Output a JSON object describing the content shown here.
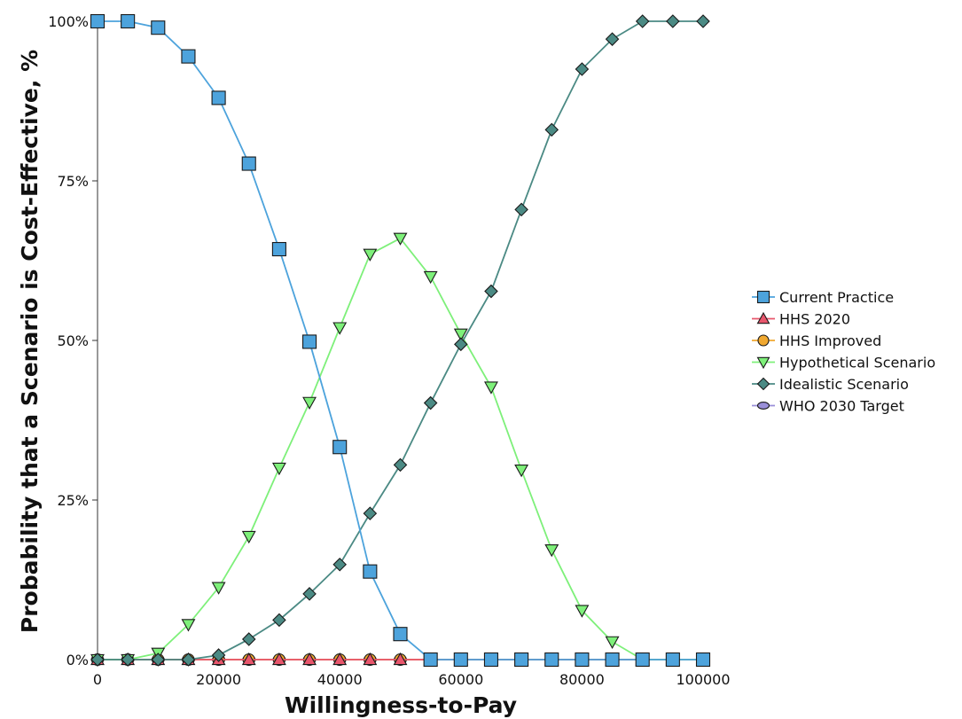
{
  "chart_data": {
    "type": "line",
    "xlabel": "Willingness-to-Pay",
    "ylabel": "Probability that a Scenario is Cost-Effective, %",
    "xlim": [
      0,
      100000
    ],
    "ylim": [
      0,
      100
    ],
    "x_ticks": [
      0,
      20000,
      40000,
      60000,
      80000,
      100000
    ],
    "x_tick_labels": [
      "0",
      "20000",
      "40000",
      "60000",
      "80000",
      "100000"
    ],
    "y_ticks": [
      0,
      25,
      50,
      75,
      100
    ],
    "y_tick_labels": [
      "0%",
      "25%",
      "50%",
      "75%",
      "100%"
    ],
    "grid": false,
    "legend_position": "right",
    "x": [
      0,
      5000,
      10000,
      15000,
      20000,
      25000,
      30000,
      35000,
      40000,
      45000,
      50000,
      55000,
      60000,
      65000,
      70000,
      75000,
      80000,
      85000,
      90000,
      95000,
      100000
    ],
    "series": [
      {
        "name": "Current Practice",
        "color": "#4da3dc",
        "marker": "square",
        "values": [
          100,
          100,
          99,
          94.5,
          88,
          77.7,
          64.3,
          49.8,
          33.3,
          13.8,
          4,
          0,
          0,
          0,
          0,
          0,
          0,
          0,
          0,
          0,
          0
        ]
      },
      {
        "name": "HHS 2020",
        "color": "#e8566c",
        "marker": "triangle-up",
        "values": [
          0,
          0,
          0,
          0,
          0,
          0,
          0,
          0,
          0,
          0,
          0,
          0,
          0,
          0,
          0,
          0,
          0,
          0,
          0,
          0,
          0
        ]
      },
      {
        "name": "HHS Improved",
        "color": "#f0a830",
        "marker": "circle",
        "values": [
          0,
          0,
          0,
          0,
          0,
          0,
          0,
          0,
          0,
          0,
          0,
          0,
          0,
          0,
          0,
          0,
          0,
          0,
          0,
          0,
          0
        ]
      },
      {
        "name": "Hypothetical Scenario",
        "color": "#7ef07a",
        "marker": "triangle-down",
        "values": [
          0,
          0,
          1,
          5.5,
          11.3,
          19.3,
          30,
          40.3,
          52,
          63.5,
          66,
          60,
          51,
          42.7,
          29.7,
          17.2,
          7.7,
          2.8,
          0,
          0,
          0
        ]
      },
      {
        "name": "Idealistic Scenario",
        "color": "#4b8a84",
        "marker": "diamond",
        "values": [
          0,
          0,
          0,
          0,
          0.7,
          3.2,
          6.2,
          10.3,
          14.9,
          22.9,
          30.5,
          40.2,
          49.4,
          57.7,
          70.5,
          83,
          92.5,
          97.2,
          100,
          100,
          100
        ]
      },
      {
        "name": "WHO 2030 Target",
        "color": "#9a8fd8",
        "marker": "ellipse",
        "values": [
          0,
          0,
          0,
          0,
          0,
          0,
          0,
          0,
          0,
          0,
          0,
          0,
          0,
          0,
          0,
          0,
          0,
          0,
          0,
          0,
          0
        ]
      }
    ]
  }
}
